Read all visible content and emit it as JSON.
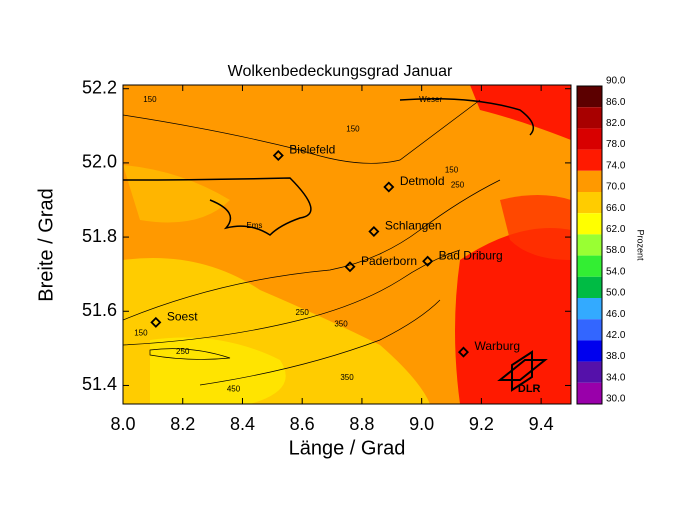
{
  "chart_data": {
    "type": "map",
    "title": "Wolkenbedeckungsgrad  Januar",
    "xlabel": "Länge / Grad",
    "ylabel": "Breite / Grad",
    "xlim": [
      8.0,
      9.5
    ],
    "ylim": [
      51.35,
      52.21
    ],
    "xticks": [
      {
        "value": 8,
        "label": "8.0"
      },
      8.2,
      8.4,
      8.6,
      8.8,
      {
        "value": 9,
        "label": "9.0"
      },
      9.2,
      9.4
    ],
    "yticks": [
      51.4,
      51.6,
      51.8,
      {
        "value": 52,
        "label": "52.0"
      },
      52.2
    ],
    "cities": [
      {
        "name": "Bielefeld",
        "lon": 8.52,
        "lat": 52.02
      },
      {
        "name": "Detmold",
        "lon": 8.89,
        "lat": 51.935
      },
      {
        "name": "Schlangen",
        "lon": 8.84,
        "lat": 51.815
      },
      {
        "name": "Paderborn",
        "lon": 8.76,
        "lat": 51.72
      },
      {
        "name": "Bad Driburg",
        "lon": 9.02,
        "lat": 51.735
      },
      {
        "name": "Soest",
        "lon": 8.11,
        "lat": 51.57
      },
      {
        "name": "Warburg",
        "lon": 9.14,
        "lat": 51.49
      }
    ],
    "labels": [
      {
        "text": "Weser",
        "lon": 9.03,
        "lat": 52.17
      },
      {
        "text": "Ems",
        "lon": 8.44,
        "lat": 51.83
      },
      {
        "text": "DLR",
        "lon": 9.36,
        "lat": 51.39
      }
    ],
    "contour_labels": [
      {
        "text": "150",
        "lon": 8.09,
        "lat": 52.17
      },
      {
        "text": "150",
        "lon": 8.77,
        "lat": 52.09
      },
      {
        "text": "150",
        "lon": 9.1,
        "lat": 51.98
      },
      {
        "text": "250",
        "lon": 9.12,
        "lat": 51.94
      },
      {
        "text": "250",
        "lon": 8.6,
        "lat": 51.595
      },
      {
        "text": "350",
        "lon": 8.73,
        "lat": 51.565
      },
      {
        "text": "150",
        "lon": 8.06,
        "lat": 51.54
      },
      {
        "text": "250",
        "lon": 8.2,
        "lat": 51.49
      },
      {
        "text": "350",
        "lon": 8.75,
        "lat": 51.42
      },
      {
        "text": "450",
        "lon": 8.37,
        "lat": 51.39
      }
    ],
    "colorbar": {
      "label": "Prozent",
      "levels": [
        {
          "value": 90,
          "label": "90.0"
        },
        {
          "value": 86,
          "label": "86.0"
        },
        {
          "value": 82,
          "label": "82.0"
        },
        {
          "value": 78,
          "label": "78.0"
        },
        {
          "value": 74,
          "label": "74.0"
        },
        {
          "value": 70,
          "label": "70.0"
        },
        {
          "value": 66,
          "label": "66.0"
        },
        {
          "value": 62,
          "label": "62.0"
        },
        {
          "value": 58,
          "label": "58.0"
        },
        {
          "value": 54,
          "label": "54.0"
        },
        {
          "value": 50,
          "label": "50.0"
        },
        {
          "value": 46,
          "label": "46.0"
        },
        {
          "value": 42,
          "label": "42.0"
        },
        {
          "value": 38,
          "label": "38.0"
        },
        {
          "value": 34,
          "label": "34.0"
        },
        {
          "value": 30,
          "label": "30.0"
        }
      ],
      "colors": [
        "#5c0000",
        "#a80000",
        "#d80000",
        "#ff1a00",
        "#ff9900",
        "#ffcc00",
        "#ffff00",
        "#99ff33",
        "#33ee33",
        "#00bb44",
        "#33aaff",
        "#3366ff",
        "#0000ee",
        "#5511aa",
        "#9900aa"
      ]
    }
  }
}
